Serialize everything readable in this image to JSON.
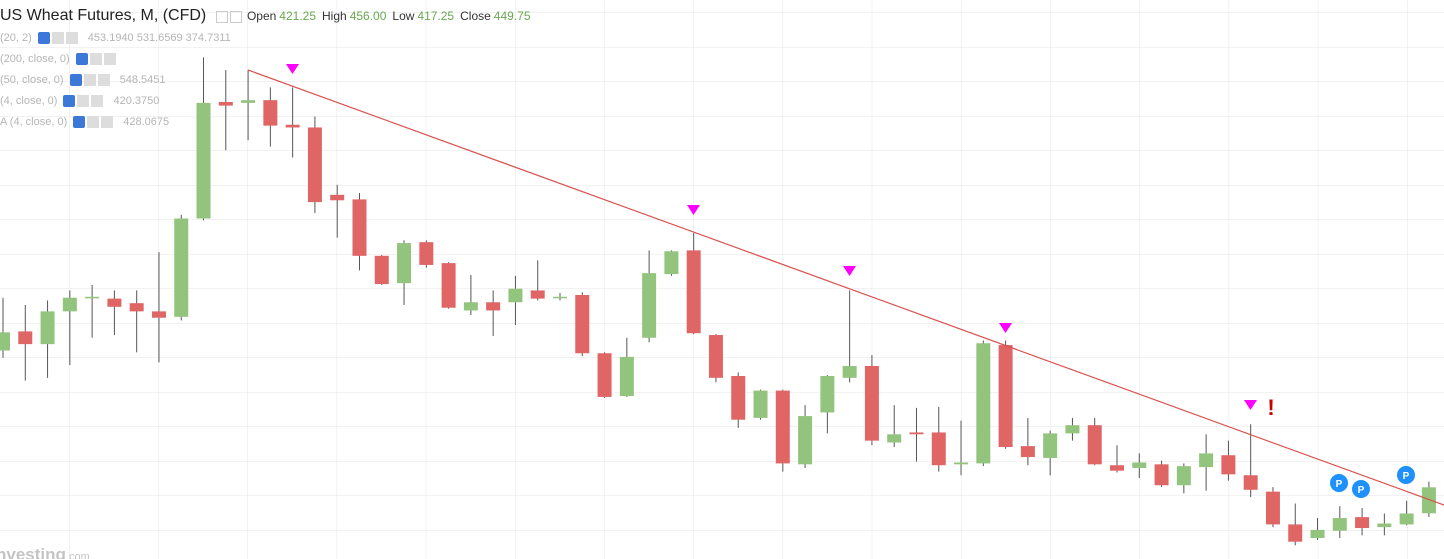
{
  "header": {
    "title": "US Wheat Futures, M, (CFD)",
    "ohlc": [
      {
        "label": "Open",
        "value": "421.25"
      },
      {
        "label": "High",
        "value": "456.00"
      },
      {
        "label": "Low",
        "value": "417.25"
      },
      {
        "label": "Close",
        "value": "449.75"
      }
    ]
  },
  "indicators": [
    {
      "params": "(20, 2)",
      "values": "453.1940  531.6569  374.7311"
    },
    {
      "params": "(200, close, 0)"
    },
    {
      "params": "(50, close, 0)",
      "values": "548.5451"
    },
    {
      "params": "(4, close, 0)",
      "values": "420.3750"
    },
    {
      "params": "A (4, close, 0)",
      "values": "428.0675"
    }
  ],
  "markers": {
    "pivot": "P",
    "alert": "!"
  },
  "watermark": {
    "brand": "nvesting",
    "suffix": ".com"
  },
  "chart_data": {
    "type": "candlestick",
    "up_color": "#93c47d",
    "down_color": "#e06666",
    "ylim": [
      371,
      985
    ],
    "open": [
      600,
      621,
      607,
      643,
      658,
      657,
      652,
      643,
      637,
      745,
      873,
      872,
      875,
      848,
      845,
      771,
      766,
      704,
      674,
      719,
      696,
      644,
      653,
      653,
      666,
      658,
      661,
      597,
      550,
      614,
      684,
      710,
      617,
      572,
      526,
      556,
      475,
      532,
      570,
      583,
      499,
      510,
      510,
      475,
      476,
      606,
      495,
      482,
      509,
      518,
      474,
      471,
      475,
      452,
      472,
      485,
      463,
      445,
      409,
      394,
      402,
      417,
      406,
      409,
      421.25
    ],
    "high": [
      658,
      650,
      655,
      666,
      672,
      666,
      666,
      708,
      749,
      922,
      908,
      908,
      889,
      889,
      857,
      782,
      773,
      705,
      721,
      721,
      697,
      683,
      666,
      682,
      699,
      663,
      664,
      598,
      614,
      710,
      710,
      729,
      618,
      576,
      557,
      557,
      540,
      573,
      666,
      595,
      540,
      537,
      538,
      523,
      611,
      611,
      526,
      512,
      526,
      526,
      496,
      487,
      479,
      476,
      508,
      501,
      519,
      450,
      432,
      416,
      429,
      427,
      421,
      435,
      456
    ],
    "low": [
      592,
      567,
      570,
      584,
      614,
      617,
      598,
      587,
      633,
      743,
      820,
      831,
      824,
      812,
      751,
      724,
      688,
      672,
      650,
      691,
      646,
      639,
      616,
      628,
      655,
      655,
      594,
      548,
      549,
      609,
      682,
      618,
      565,
      515,
      524,
      467,
      471,
      509,
      565,
      496,
      494,
      478,
      467,
      463,
      473,
      492,
      474,
      463,
      501,
      474,
      466,
      460,
      450,
      443,
      446,
      457,
      439,
      406,
      386,
      392,
      394,
      397,
      397,
      408,
      417.25
    ],
    "close": [
      620,
      607,
      643,
      658,
      659,
      648,
      643,
      636,
      745,
      872,
      869,
      875,
      847,
      845,
      763,
      765,
      704,
      673,
      718,
      694,
      647,
      653,
      644,
      668,
      657,
      659,
      597,
      549,
      593,
      685,
      709,
      619,
      570,
      524,
      556,
      476,
      528,
      572,
      583,
      501,
      508,
      508,
      474,
      477,
      608,
      494,
      483,
      509,
      518,
      475,
      468,
      477,
      452,
      473,
      487,
      464,
      447,
      409,
      390,
      403,
      416,
      405,
      410,
      421,
      449.75
    ]
  }
}
